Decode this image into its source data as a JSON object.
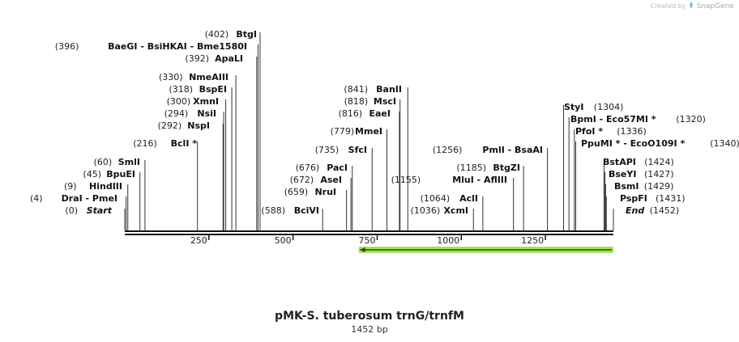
{
  "credit": {
    "prefix": "Created by",
    "icon": "snapgene-logo-icon",
    "brand": "SnapGene"
  },
  "title": "pMK-S. tuberosum trnG/trnfM",
  "subtitle": "1452 bp",
  "sequence_length": 1452,
  "ticks": [
    {
      "value": 250,
      "label": "250"
    },
    {
      "value": 500,
      "label": "500"
    },
    {
      "value": 750,
      "label": "750"
    },
    {
      "value": 1000,
      "label": "1000"
    },
    {
      "value": 1250,
      "label": "1250"
    }
  ],
  "feature": {
    "start": 695,
    "end": 1452,
    "direction": "reverse",
    "color": "#a8e060"
  },
  "sites": [
    {
      "pos": 0,
      "pos_label": "(0)",
      "name": "Start",
      "italic": true
    },
    {
      "pos": 4,
      "pos_label": "(4)",
      "name": "DraI  - PmeI"
    },
    {
      "pos": 9,
      "pos_label": "(9)",
      "name": "HindIII"
    },
    {
      "pos": 45,
      "pos_label": "(45)",
      "name": "BpuEI"
    },
    {
      "pos": 60,
      "pos_label": "(60)",
      "name": "SmlI"
    },
    {
      "pos": 216,
      "pos_label": "(216)",
      "name": "BclI *"
    },
    {
      "pos": 292,
      "pos_label": "(292)",
      "name": "NspI"
    },
    {
      "pos": 294,
      "pos_label": "(294)",
      "name": "NsiI"
    },
    {
      "pos": 300,
      "pos_label": "(300)",
      "name": "XmnI"
    },
    {
      "pos": 318,
      "pos_label": "(318)",
      "name": "BspEI"
    },
    {
      "pos": 330,
      "pos_label": "(330)",
      "name": "NmeAIII"
    },
    {
      "pos": 392,
      "pos_label": "(392)",
      "name": "ApaLI"
    },
    {
      "pos": 396,
      "pos_label": "(396)",
      "name": "BaeGI  - BsiHKAI  - Bme1580I"
    },
    {
      "pos": 402,
      "pos_label": "(402)",
      "name": "BtgI"
    },
    {
      "pos": 588,
      "pos_label": "(588)",
      "name": "BciVI"
    },
    {
      "pos": 659,
      "pos_label": "(659)",
      "name": "NruI"
    },
    {
      "pos": 672,
      "pos_label": "(672)",
      "name": "AseI"
    },
    {
      "pos": 676,
      "pos_label": "(676)",
      "name": "PacI"
    },
    {
      "pos": 735,
      "pos_label": "(735)",
      "name": "SfcI"
    },
    {
      "pos": 779,
      "pos_label": "(779)",
      "name": "MmeI"
    },
    {
      "pos": 816,
      "pos_label": "(816)",
      "name": "EaeI"
    },
    {
      "pos": 818,
      "pos_label": "(818)",
      "name": "MscI"
    },
    {
      "pos": 841,
      "pos_label": "(841)",
      "name": "BanII"
    },
    {
      "pos": 1036,
      "pos_label": "(1036)",
      "name": "XcmI"
    },
    {
      "pos": 1064,
      "pos_label": "(1064)",
      "name": "AclI"
    },
    {
      "pos": 1155,
      "pos_label": "(1155)",
      "name": "MluI  - AflIII"
    },
    {
      "pos": 1185,
      "pos_label": "(1185)",
      "name": "BtgZI"
    },
    {
      "pos": 1256,
      "pos_label": "(1256)",
      "name": "PmlI  - BsaAI"
    },
    {
      "pos": 1304,
      "pos_label": "(1304)",
      "name": "StyI"
    },
    {
      "pos": 1320,
      "pos_label": "(1320)",
      "name": "BpmI  - Eco57MI *"
    },
    {
      "pos": 1336,
      "pos_label": "(1336)",
      "name": "PfoI *"
    },
    {
      "pos": 1340,
      "pos_label": "(1340)",
      "name": "PpuMI *  - EcoO109I *"
    },
    {
      "pos": 1424,
      "pos_label": "(1424)",
      "name": "BstAPI"
    },
    {
      "pos": 1427,
      "pos_label": "(1427)",
      "name": "BseYI"
    },
    {
      "pos": 1429,
      "pos_label": "(1429)",
      "name": "BsmI"
    },
    {
      "pos": 1431,
      "pos_label": "(1431)",
      "name": "PspFI"
    },
    {
      "pos": 1452,
      "pos_label": "(1452)",
      "name": "End",
      "italic": true
    }
  ]
}
